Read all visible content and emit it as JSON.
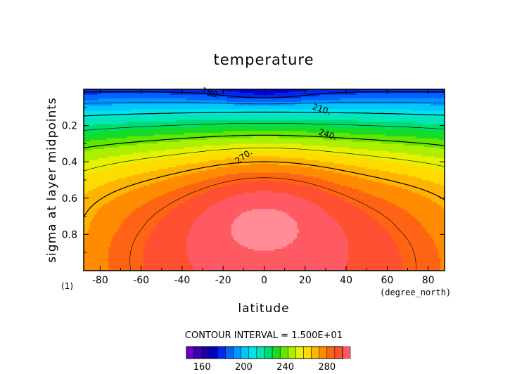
{
  "chart_data": {
    "type": "heatmap",
    "title": "temperature",
    "xlabel": "latitude",
    "ylabel": "sigma at layer midpoints",
    "x_unit": "(degree_north)",
    "y_note": "(1)",
    "xlim": [
      -88,
      88
    ],
    "ylim": [
      0.0,
      1.0
    ],
    "y_inverted": true,
    "x_ticks": [
      -80,
      -60,
      -40,
      -20,
      0,
      20,
      40,
      60,
      80
    ],
    "x_tick_labels": [
      "-80",
      "-60",
      "-40",
      "-20",
      "0",
      "20",
      "40",
      "60",
      "80"
    ],
    "y_ticks": [
      0.2,
      0.4,
      0.6,
      0.8
    ],
    "y_tick_labels": [
      "0.2",
      "0.4",
      "0.6",
      "0.8"
    ],
    "contour_interval_text": "CONTOUR INTERVAL = 1.500E+01",
    "contour_interval": 15,
    "contour_labels": [
      {
        "text": "180.",
        "lat": -26,
        "sigma": 0.02
      },
      {
        "text": "210.",
        "lat": 28,
        "sigma": 0.11
      },
      {
        "text": "240.",
        "lat": 31,
        "sigma": 0.25
      },
      {
        "text": "270.",
        "lat": -10,
        "sigma": 0.37
      }
    ],
    "colorbar": {
      "min": 145,
      "max": 295,
      "step": 7.5,
      "tick_values": [
        160,
        200,
        240,
        280
      ],
      "tick_labels": [
        "160",
        "200",
        "240",
        "280"
      ],
      "colors": [
        "#6a00c8",
        "#3a00b4",
        "#1a00a0",
        "#0000cc",
        "#0028e6",
        "#0064ff",
        "#0096ff",
        "#00c8ff",
        "#00e6e6",
        "#00e6b4",
        "#00dc6e",
        "#14dc28",
        "#64e600",
        "#aaf000",
        "#e6f000",
        "#ffdc00",
        "#ffb400",
        "#ff8c00",
        "#ff6414",
        "#ff5032",
        "#ff5a64",
        "#ff8c96"
      ]
    },
    "legend": "colorbar-bottom",
    "grid": false
  }
}
